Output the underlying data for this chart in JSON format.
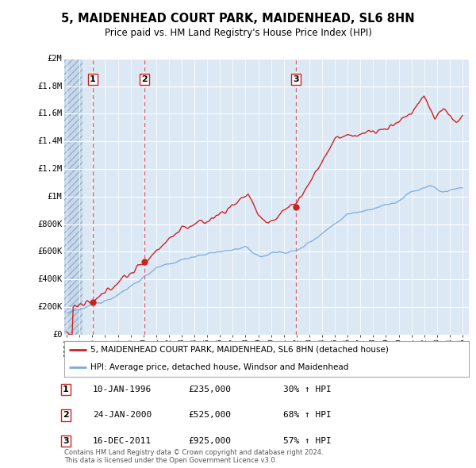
{
  "title": "5, MAIDENHEAD COURT PARK, MAIDENHEAD, SL6 8HN",
  "subtitle": "Price paid vs. HM Land Registry's House Price Index (HPI)",
  "background_color": "#ffffff",
  "plot_bg_color": "#dce9f5",
  "grid_color": "#ffffff",
  "hatch_color": "#c8d8ea",
  "red_line_color": "#cc2222",
  "blue_line_color": "#7aaadd",
  "red_dashed_color": "#cc2222",
  "ylim": [
    0,
    2000000
  ],
  "yticks": [
    0,
    200000,
    400000,
    600000,
    800000,
    1000000,
    1200000,
    1400000,
    1600000,
    1800000,
    2000000
  ],
  "ytick_labels": [
    "£0",
    "£200K",
    "£400K",
    "£600K",
    "£800K",
    "£1M",
    "£1.2M",
    "£1.4M",
    "£1.6M",
    "£1.8M",
    "£2M"
  ],
  "xstart": 1993.8,
  "xend": 2025.5,
  "transactions": [
    {
      "date_num": 1996.04,
      "price": 235000,
      "label": "1"
    },
    {
      "date_num": 2000.07,
      "price": 525000,
      "label": "2"
    },
    {
      "date_num": 2011.96,
      "price": 925000,
      "label": "3"
    }
  ],
  "legend_entries": [
    {
      "label": "5, MAIDENHEAD COURT PARK, MAIDENHEAD, SL6 8HN (detached house)",
      "color": "#cc2222",
      "lw": 2
    },
    {
      "label": "HPI: Average price, detached house, Windsor and Maidenhead",
      "color": "#7aaadd",
      "lw": 2
    }
  ],
  "table_rows": [
    {
      "num": "1",
      "date": "10-JAN-1996",
      "price": "£235,000",
      "change": "30% ↑ HPI"
    },
    {
      "num": "2",
      "date": "24-JAN-2000",
      "price": "£525,000",
      "change": "68% ↑ HPI"
    },
    {
      "num": "3",
      "date": "16-DEC-2011",
      "price": "£925,000",
      "change": "57% ↑ HPI"
    }
  ],
  "footer": "Contains HM Land Registry data © Crown copyright and database right 2024.\nThis data is licensed under the Open Government Licence v3.0."
}
